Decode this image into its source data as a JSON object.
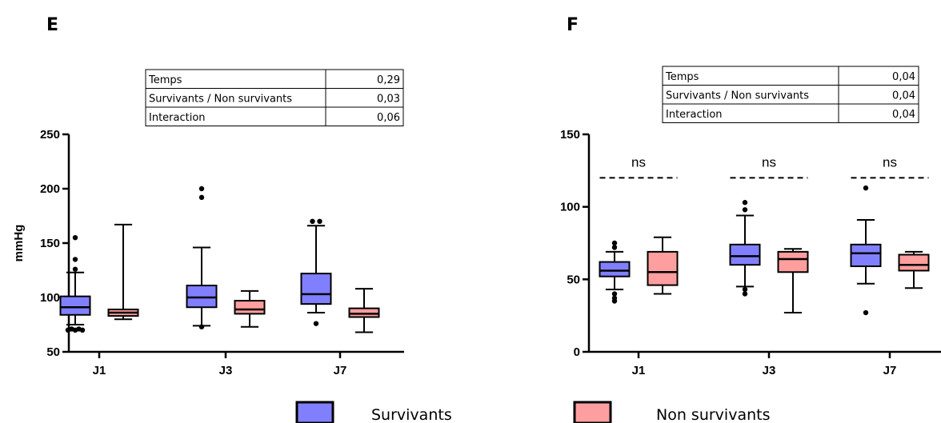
{
  "chart_data": [
    {
      "type": "box",
      "panel_label": "E",
      "ylabel": "mmHg",
      "ylim": [
        50,
        250
      ],
      "yticks": [
        50,
        100,
        150,
        200,
        250
      ],
      "categories": [
        "J1",
        "J3",
        "J7"
      ],
      "stats_table": [
        {
          "label": "Temps",
          "value": "0,29"
        },
        {
          "label": "Survivants / Non survivants",
          "value": "0,03"
        },
        {
          "label": "Interaction",
          "value": "0,06"
        }
      ],
      "significance": [],
      "series": [
        {
          "name": "Survivants",
          "color": "#8080ff",
          "boxes": [
            {
              "min": 75,
              "q1": 84,
              "median": 91,
              "q3": 101,
              "max": 123,
              "outliers": [
                70,
                70,
                71,
                71,
                70,
                126,
                135,
                155
              ]
            },
            {
              "min": 74,
              "q1": 91,
              "median": 100,
              "q3": 111,
              "max": 146,
              "outliers": [
                73,
                192,
                200
              ]
            },
            {
              "min": 86,
              "q1": 94,
              "median": 103,
              "q3": 122,
              "max": 166,
              "outliers": [
                76,
                170,
                170
              ]
            }
          ]
        },
        {
          "name": "Non survivants",
          "color": "#ff9e9e",
          "boxes": [
            {
              "min": 80,
              "q1": 83,
              "median": 86,
              "q3": 89,
              "max": 167,
              "outliers": []
            },
            {
              "min": 73,
              "q1": 85,
              "median": 89,
              "q3": 97,
              "max": 106,
              "outliers": []
            },
            {
              "min": 68,
              "q1": 82,
              "median": 85,
              "q3": 90,
              "max": 108,
              "outliers": []
            }
          ]
        }
      ]
    },
    {
      "type": "box",
      "panel_label": "F",
      "ylabel": "",
      "ylim": [
        0,
        150
      ],
      "yticks": [
        0,
        50,
        100,
        150
      ],
      "categories": [
        "J1",
        "J3",
        "J7"
      ],
      "stats_table": [
        {
          "label": "Temps",
          "value": "0,04"
        },
        {
          "label": "Survivants / Non survivants",
          "value": "0,04"
        },
        {
          "label": "Interaction",
          "value": "0,04"
        }
      ],
      "significance": [
        {
          "category": "J1",
          "label": "ns",
          "y": 120
        },
        {
          "category": "J3",
          "label": "ns",
          "y": 120
        },
        {
          "category": "J7",
          "label": "ns",
          "y": 120
        }
      ],
      "series": [
        {
          "name": "Survivants",
          "color": "#8080ff",
          "boxes": [
            {
              "min": 43,
              "q1": 52,
              "median": 56,
              "q3": 62,
              "max": 69,
              "outliers": [
                35,
                37,
                40,
                72,
                75
              ]
            },
            {
              "min": 45,
              "q1": 60,
              "median": 66,
              "q3": 74,
              "max": 94,
              "outliers": [
                40,
                43,
                98,
                103
              ]
            },
            {
              "min": 47,
              "q1": 59,
              "median": 68,
              "q3": 74,
              "max": 91,
              "outliers": [
                27,
                113
              ]
            }
          ]
        },
        {
          "name": "Non survivants",
          "color": "#ff9e9e",
          "boxes": [
            {
              "min": 40,
              "q1": 46,
              "median": 55,
              "q3": 69,
              "max": 79,
              "outliers": []
            },
            {
              "min": 27,
              "q1": 55,
              "median": 64,
              "q3": 69,
              "max": 71,
              "outliers": []
            },
            {
              "min": 44,
              "q1": 56,
              "median": 60,
              "q3": 67,
              "max": 69,
              "outliers": []
            }
          ]
        }
      ]
    }
  ],
  "legend": {
    "items": [
      {
        "label": "Survivants",
        "color": "#8080ff"
      },
      {
        "label": "Non survivants",
        "color": "#ff9e9e"
      }
    ]
  }
}
